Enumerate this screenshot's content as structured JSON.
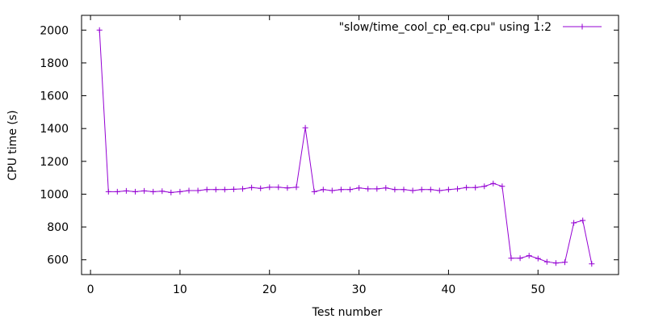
{
  "chart_data": {
    "type": "line",
    "title": "",
    "xlabel": "Test number",
    "ylabel": "CPU time (s)",
    "xlim": [
      -1,
      59
    ],
    "ylim": [
      510,
      2090
    ],
    "xticks": [
      0,
      10,
      20,
      30,
      40,
      50
    ],
    "yticks": [
      600,
      800,
      1000,
      1200,
      1400,
      1600,
      1800,
      2000
    ],
    "grid": false,
    "legend_position": "top-right",
    "series": [
      {
        "name": "\"slow/time_cool_cp_eq.cpu\" using 1:2",
        "color": "#9400d3",
        "marker": "plus",
        "x": [
          1,
          2,
          3,
          4,
          5,
          6,
          7,
          8,
          9,
          10,
          11,
          12,
          13,
          14,
          15,
          16,
          17,
          18,
          19,
          20,
          21,
          22,
          23,
          24,
          25,
          26,
          27,
          28,
          29,
          30,
          31,
          32,
          33,
          34,
          35,
          36,
          37,
          38,
          39,
          40,
          41,
          42,
          43,
          44,
          45,
          46,
          47,
          48,
          49,
          50,
          51,
          52,
          53,
          54,
          55,
          56
        ],
        "y": [
          2000,
          1015,
          1015,
          1020,
          1015,
          1020,
          1015,
          1018,
          1010,
          1015,
          1022,
          1022,
          1028,
          1028,
          1028,
          1030,
          1032,
          1040,
          1035,
          1042,
          1042,
          1038,
          1042,
          1405,
          1015,
          1028,
          1022,
          1028,
          1028,
          1038,
          1032,
          1032,
          1038,
          1028,
          1028,
          1022,
          1028,
          1028,
          1022,
          1028,
          1032,
          1040,
          1040,
          1048,
          1065,
          1048,
          610,
          610,
          625,
          608,
          588,
          580,
          585,
          825,
          840,
          575
        ]
      }
    ]
  }
}
